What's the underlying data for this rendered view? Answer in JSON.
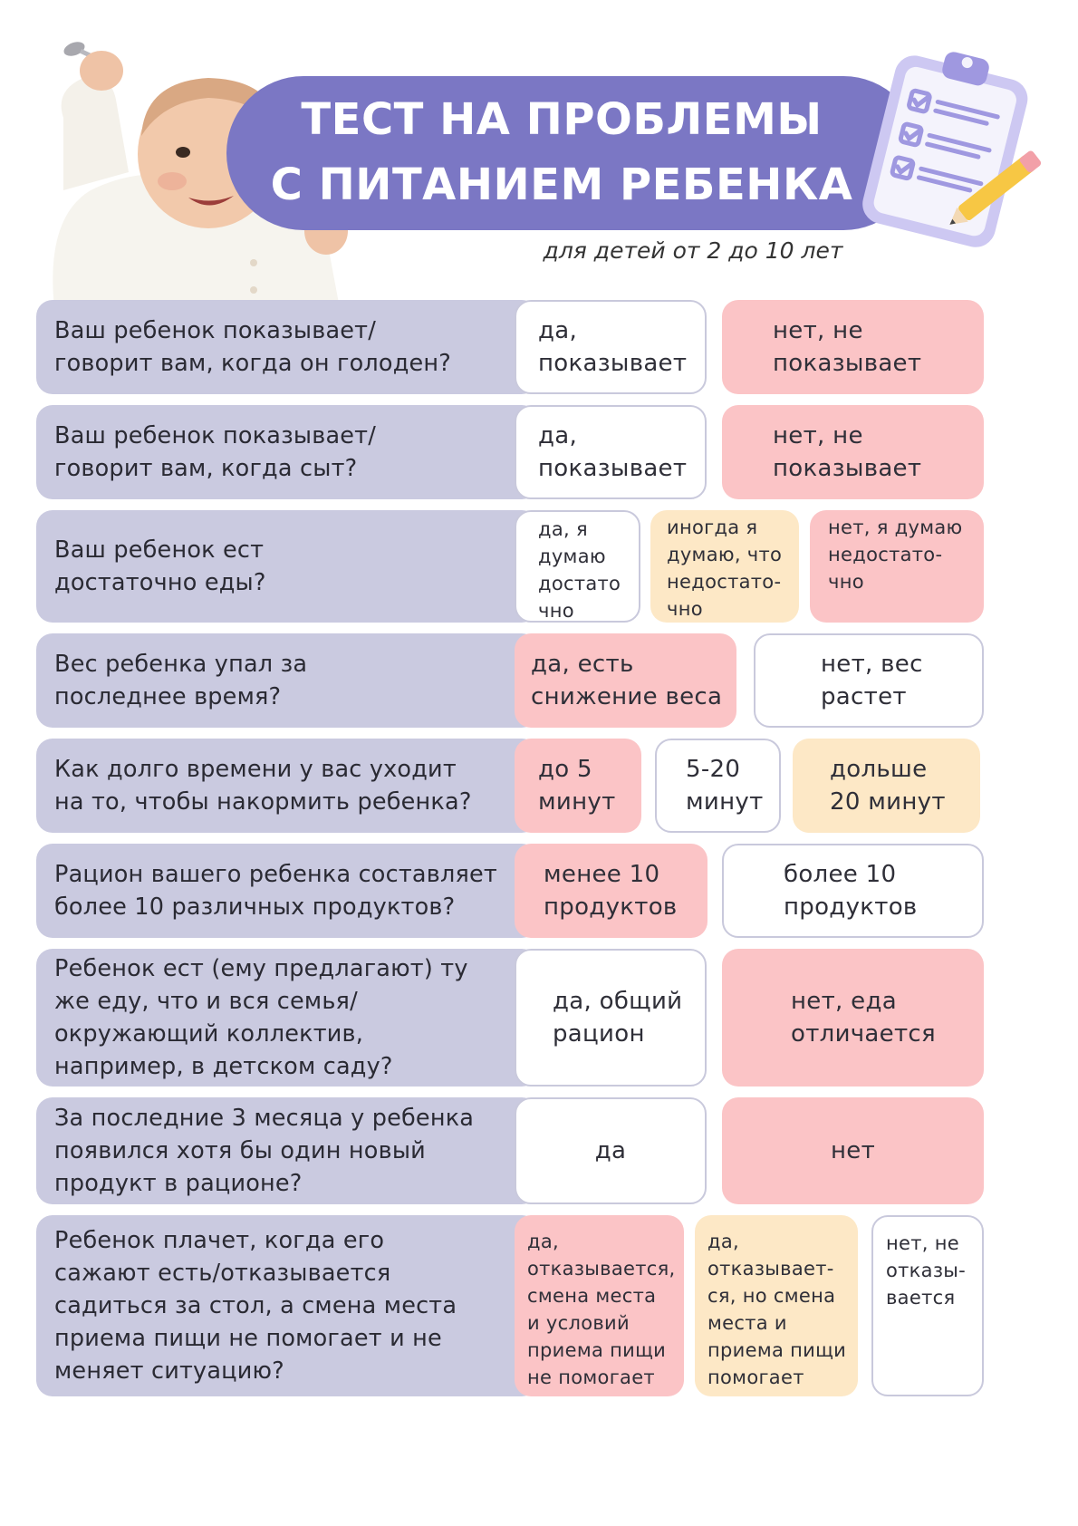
{
  "header": {
    "title_line1": "ТЕСТ НА ПРОБЛЕМЫ",
    "title_line2": "С ПИТАНИЕМ РЕБЕНКА",
    "subtitle": "для детей от 2 до 10 лет"
  },
  "colors": {
    "title_bg": "#7b77c4",
    "question_bg": "#cacae0",
    "answer_white": "#ffffff",
    "answer_pink": "#fbc4c6",
    "answer_yellow": "#fde8c6"
  },
  "rows": [
    {
      "question": "Ваш ребенок показывает/\nговорит вам, когда он голоден?",
      "answers": [
        "да,\nпоказывает",
        "нет, не\nпоказывает"
      ]
    },
    {
      "question": "Ваш ребенок показывает/\nговорит вам, когда сыт?",
      "answers": [
        "да,\nпоказывает",
        "нет, не\nпоказывает"
      ]
    },
    {
      "question": "Ваш ребенок ест\nдостаточно еды?",
      "answers": [
        "да, я\nдумаю\nдостато\nчно",
        "иногда я\nдумаю, что\nнедостато-\nчно",
        "нет, я думаю\nнедостато-\nчно"
      ]
    },
    {
      "question": "Вес ребенка упал за\nпоследнее время?",
      "answers": [
        "да, есть\nснижение веса",
        "нет, вес\nрастет"
      ]
    },
    {
      "question": "Как долго времени у вас уходит\nна то, чтобы накормить ребенка?",
      "answers": [
        "до 5\nминут",
        "5-20\nминут",
        "дольше\n20 минут"
      ]
    },
    {
      "question": "Рацион вашего ребенка составляет\nболее 10 различных продуктов?",
      "answers": [
        "менее 10\nпродуктов",
        "более 10\nпродуктов"
      ]
    },
    {
      "question": "Ребенок ест (ему предлагают) ту\nже еду, что и вся семья/\nокружающий коллектив,\nнапример, в детском саду?",
      "answers": [
        "да, общий\nрацион",
        "нет, еда\nотличается"
      ]
    },
    {
      "question": "За последние 3 месяца у ребенка\nпоявился хотя бы один новый\nпродукт в рационе?",
      "answers": [
        "да",
        "нет"
      ]
    },
    {
      "question": "Ребенок плачет, когда его\nсажают есть/отказывается\nсадиться за стол, а смена места\nприема пищи не помогает и не\nменяет ситуацию?",
      "answers": [
        "да,\nотказывается,\nсмена места\nи условий\nприема пищи\nне помогает",
        "да,\nотказывает-\nся, но смена\nместа и\nприема пищи\nпомогает",
        "нет, не\nотказы-\nвается"
      ]
    }
  ]
}
